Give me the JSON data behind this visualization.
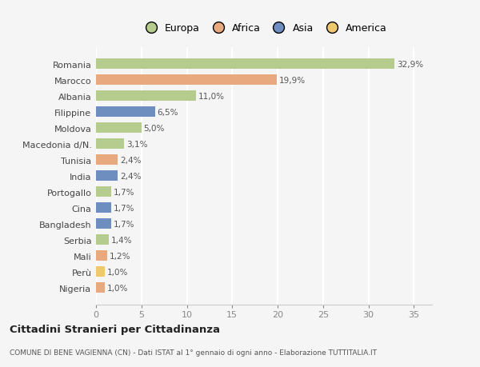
{
  "categories": [
    "Nigeria",
    "Perù",
    "Mali",
    "Serbia",
    "Bangladesh",
    "Cina",
    "Portogallo",
    "India",
    "Tunisia",
    "Macedonia d/N.",
    "Moldova",
    "Filippine",
    "Albania",
    "Marocco",
    "Romania"
  ],
  "values": [
    1.0,
    1.0,
    1.2,
    1.4,
    1.7,
    1.7,
    1.7,
    2.4,
    2.4,
    3.1,
    5.0,
    6.5,
    11.0,
    19.9,
    32.9
  ],
  "continents": [
    "Africa",
    "America",
    "Africa",
    "Europa",
    "Asia",
    "Asia",
    "Europa",
    "Asia",
    "Africa",
    "Europa",
    "Europa",
    "Asia",
    "Europa",
    "Africa",
    "Europa"
  ],
  "continent_colors": {
    "Europa": "#b5cc8e",
    "Africa": "#e8a97e",
    "Asia": "#6e8ebf",
    "America": "#f0c96e"
  },
  "label_values": [
    "1,0%",
    "1,0%",
    "1,2%",
    "1,4%",
    "1,7%",
    "1,7%",
    "1,7%",
    "2,4%",
    "2,4%",
    "3,1%",
    "5,0%",
    "6,5%",
    "11,0%",
    "19,9%",
    "32,9%"
  ],
  "title": "Cittadini Stranieri per Cittadinanza",
  "subtitle": "COMUNE DI BENE VAGIENNA (CN) - Dati ISTAT al 1° gennaio di ogni anno - Elaborazione TUTTITALIA.IT",
  "xlim": [
    0,
    37
  ],
  "xticks": [
    0,
    5,
    10,
    15,
    20,
    25,
    30,
    35
  ],
  "bg_color": "#f5f5f5",
  "grid_color": "#ffffff",
  "bar_height": 0.65,
  "legend_entries": [
    "Europa",
    "Africa",
    "Asia",
    "America"
  ],
  "legend_colors": [
    "#b5cc8e",
    "#e8a97e",
    "#6e8ebf",
    "#f0c96e"
  ]
}
